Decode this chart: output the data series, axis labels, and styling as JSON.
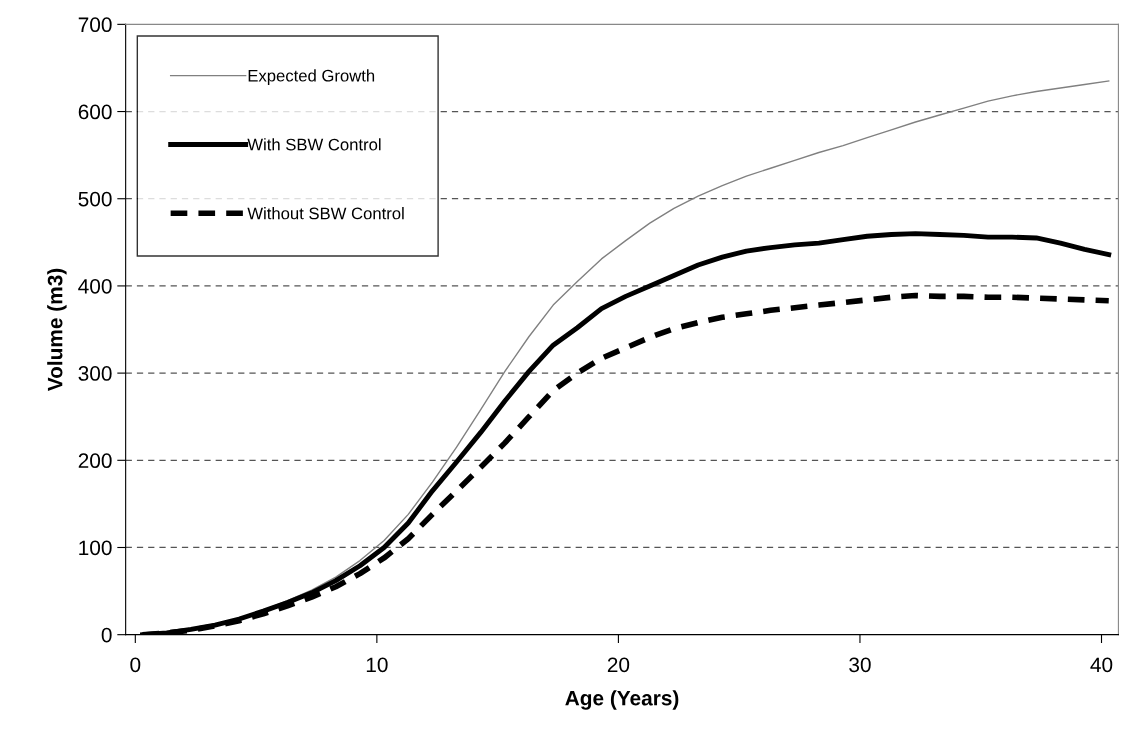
{
  "chart_data": {
    "type": "line",
    "xlabel": "Age (Years)",
    "ylabel": "Volume (m3)",
    "xlim": [
      -0.4,
      40.7
    ],
    "xticks": [
      0,
      10,
      20,
      30,
      40
    ],
    "ylim": [
      0,
      700
    ],
    "yticks": [
      0,
      100,
      200,
      300,
      400,
      500,
      600,
      700
    ],
    "grid": "y",
    "legend": "top left",
    "marker": "none",
    "x": [
      0.3,
      1.3,
      2.3,
      3.3,
      4.3,
      5.3,
      6.3,
      7.3,
      8.3,
      9.3,
      10.3,
      11.3,
      12.3,
      13.3,
      14.3,
      15.3,
      16.3,
      17.3,
      18.3,
      19.3,
      20.3,
      21.3,
      22.3,
      23.3,
      24.3,
      25.3,
      26.3,
      27.3,
      28.3,
      29.3,
      30.3,
      31.3,
      32.3,
      33.3,
      34.3,
      35.3,
      36.3,
      37.3,
      38.3,
      39.3,
      40.3
    ],
    "series": [
      {
        "name": "Expected Growth",
        "color": "#808080",
        "line_style": "solid",
        "values": [
          0,
          2,
          6,
          11,
          19,
          28,
          39,
          51,
          66,
          85,
          108,
          138,
          175,
          215,
          258,
          302,
          342,
          378,
          405,
          431,
          452,
          472,
          489,
          503,
          515,
          526,
          535,
          544,
          553,
          561,
          570,
          579,
          588,
          596,
          604,
          612,
          618,
          623,
          627,
          631,
          635
        ]
      },
      {
        "name": "With SBW Control",
        "color": "#000000",
        "line_style": "solid",
        "values": [
          0,
          2,
          6,
          11,
          18,
          27,
          37,
          48,
          62,
          79,
          100,
          128,
          165,
          198,
          232,
          268,
          302,
          332,
          352,
          374,
          388,
          400,
          412,
          424,
          433,
          440,
          444,
          447,
          449,
          453,
          457,
          459,
          460,
          459,
          458,
          456,
          456,
          455,
          449,
          442,
          436
        ]
      },
      {
        "name": "Without SBW Control",
        "color": "#000000",
        "line_style": "dashed",
        "values": [
          0,
          2,
          5,
          10,
          16,
          24,
          33,
          43,
          55,
          70,
          88,
          110,
          138,
          165,
          192,
          220,
          250,
          280,
          300,
          317,
          329,
          341,
          351,
          358,
          364,
          368,
          372,
          375,
          378,
          381,
          384,
          387,
          389,
          388,
          388,
          387,
          387,
          386,
          385,
          384,
          383
        ]
      }
    ]
  }
}
